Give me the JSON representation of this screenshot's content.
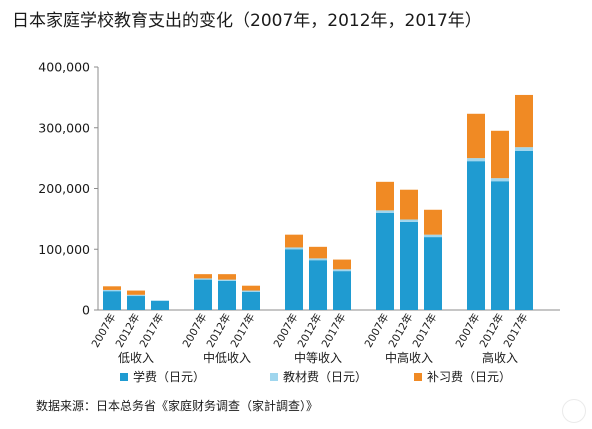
{
  "title": "日本家庭学校教育支出的变化（2007年，2012年，2017年）",
  "source": "数据来源：日本总务省《家庭财务调查（家計調查）》",
  "colors": {
    "tuition": "#1f9bd1",
    "materials": "#9fd6ee",
    "tutoring": "#f08a24",
    "axis": "#8c8c8c",
    "text": "#1a1a1a"
  },
  "chart_data": {
    "type": "bar",
    "stacked": true,
    "title": "日本家庭学校教育支出的变化（2007年，2012年，2017年）",
    "ylim": [
      0,
      400000
    ],
    "yticks": [
      0,
      100000,
      200000,
      300000,
      400000
    ],
    "ytick_labels": [
      "0",
      "100,000",
      "200,000",
      "300,000",
      "400,000"
    ],
    "grid": false,
    "legend_position": "bottom",
    "groups": [
      {
        "name": "低收入",
        "years": [
          "2007年",
          "2012年",
          "2017年"
        ]
      },
      {
        "name": "中低收入",
        "years": [
          "2007年",
          "2012年",
          "2017年"
        ]
      },
      {
        "name": "中等收入",
        "years": [
          "2007年",
          "2012年",
          "2017年"
        ]
      },
      {
        "name": "中高收入",
        "years": [
          "2007年",
          "2012年",
          "2017年"
        ]
      },
      {
        "name": "高收入",
        "years": [
          "2007年",
          "2012年",
          "2017年"
        ]
      }
    ],
    "series": [
      {
        "name": "学费（日元）",
        "color": "#1f9bd1",
        "values": [
          [
            31000,
            23000,
            15000
          ],
          [
            50000,
            48000,
            30000
          ],
          [
            100000,
            82000,
            64000
          ],
          [
            160000,
            145000,
            120000
          ],
          [
            245000,
            212000,
            262000
          ]
        ]
      },
      {
        "name": "教材费（日元）",
        "color": "#9fd6ee",
        "values": [
          [
            2000,
            2000,
            1000
          ],
          [
            2000,
            2000,
            2000
          ],
          [
            3000,
            3000,
            3000
          ],
          [
            4000,
            4000,
            4000
          ],
          [
            5000,
            5000,
            6000
          ]
        ]
      },
      {
        "name": "补习费（日元）",
        "color": "#f08a24",
        "values": [
          [
            6000,
            7000,
            0
          ],
          [
            7000,
            9000,
            8000
          ],
          [
            21000,
            19000,
            16000
          ],
          [
            47000,
            49000,
            41000
          ],
          [
            73000,
            78000,
            86000
          ]
        ]
      }
    ]
  }
}
